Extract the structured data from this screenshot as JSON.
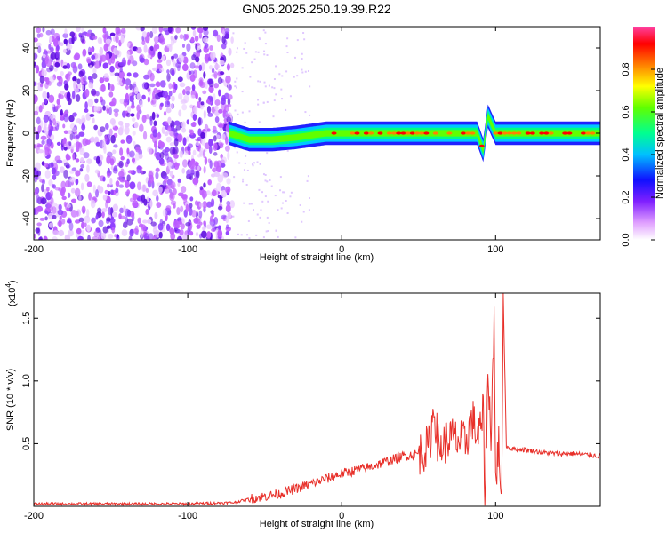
{
  "title": "GN05.2025.250.19.39.R22",
  "chart_data": [
    {
      "type": "heatmap",
      "xlabel": "Height of straight line (km)",
      "ylabel": "Frequency (Hz)",
      "xlim": [
        -200,
        168
      ],
      "ylim": [
        -50,
        50
      ],
      "xticks": [
        -200,
        -100,
        0,
        100
      ],
      "xtick_labels": [
        "-200",
        "-100",
        "0",
        "100"
      ],
      "yticks": [
        -40,
        -20,
        0,
        20,
        40
      ],
      "ytick_labels": [
        "-40",
        "-20",
        "0",
        "20",
        "40"
      ],
      "colorbar": {
        "label": "Normalized spectral amplitude",
        "range": [
          0,
          1
        ],
        "ticks": [
          0.0,
          0.2,
          0.4,
          0.6,
          0.8
        ],
        "tick_labels": [
          "0.0",
          "0.2",
          "0.4",
          "0.6",
          "0.8"
        ],
        "colormap": [
          "#ffffff",
          "#c060ff",
          "#2020ff",
          "#00c8ff",
          "#00ff80",
          "#60ff00",
          "#ffff00",
          "#ff8000",
          "#ff0000",
          "#ff40a0"
        ]
      },
      "noise_region_x": [
        -200,
        -71
      ],
      "ridge": {
        "description_points_x": [
          -73,
          -60,
          -45,
          -30,
          -20,
          -10,
          0,
          10,
          20,
          30,
          40,
          50,
          60,
          70,
          80,
          88,
          92,
          95,
          100,
          120,
          140,
          168
        ],
        "description_points_y": [
          0,
          -3,
          -3,
          -2,
          -1,
          0,
          0,
          0,
          0,
          0,
          0,
          0,
          0,
          0,
          0,
          0,
          -8,
          8,
          0,
          0,
          0,
          0
        ]
      },
      "grid": false
    },
    {
      "type": "line",
      "xlabel": "Height of straight line (km)",
      "ylabel": "SNR (10 * v/v)",
      "exponent_label": "(x10",
      "exponent_power": "4",
      "exponent_close": ")",
      "xlim": [
        -200,
        168
      ],
      "ylim": [
        0,
        1.7
      ],
      "xticks": [
        -200,
        -100,
        0,
        100
      ],
      "xtick_labels": [
        "-200",
        "-100",
        "0",
        "100"
      ],
      "yticks": [
        0.5,
        1.0,
        1.5
      ],
      "ytick_labels": [
        "0.5",
        "1.0",
        "1.5"
      ],
      "color": "#e8302a",
      "series": [
        {
          "x": [
            -200,
            -150,
            -100,
            -70,
            -60,
            -40,
            -20,
            0,
            10,
            20,
            30,
            40,
            50,
            57,
            60,
            63,
            70,
            80,
            85,
            88,
            90,
            92,
            93,
            95,
            97,
            99,
            100,
            102,
            104,
            105,
            107,
            110,
            120,
            130,
            140,
            150,
            160,
            168
          ],
          "y": [
            0.02,
            0.02,
            0.02,
            0.03,
            0.06,
            0.1,
            0.18,
            0.26,
            0.29,
            0.32,
            0.36,
            0.4,
            0.42,
            0.48,
            0.8,
            0.45,
            0.55,
            0.5,
            0.7,
            0.55,
            0.6,
            0.75,
            0.1,
            1.0,
            0.6,
            1.5,
            0.2,
            0.5,
            0.1,
            1.7,
            0.48,
            0.46,
            0.45,
            0.43,
            0.42,
            0.42,
            0.41,
            0.4
          ]
        }
      ],
      "grid": false
    }
  ]
}
